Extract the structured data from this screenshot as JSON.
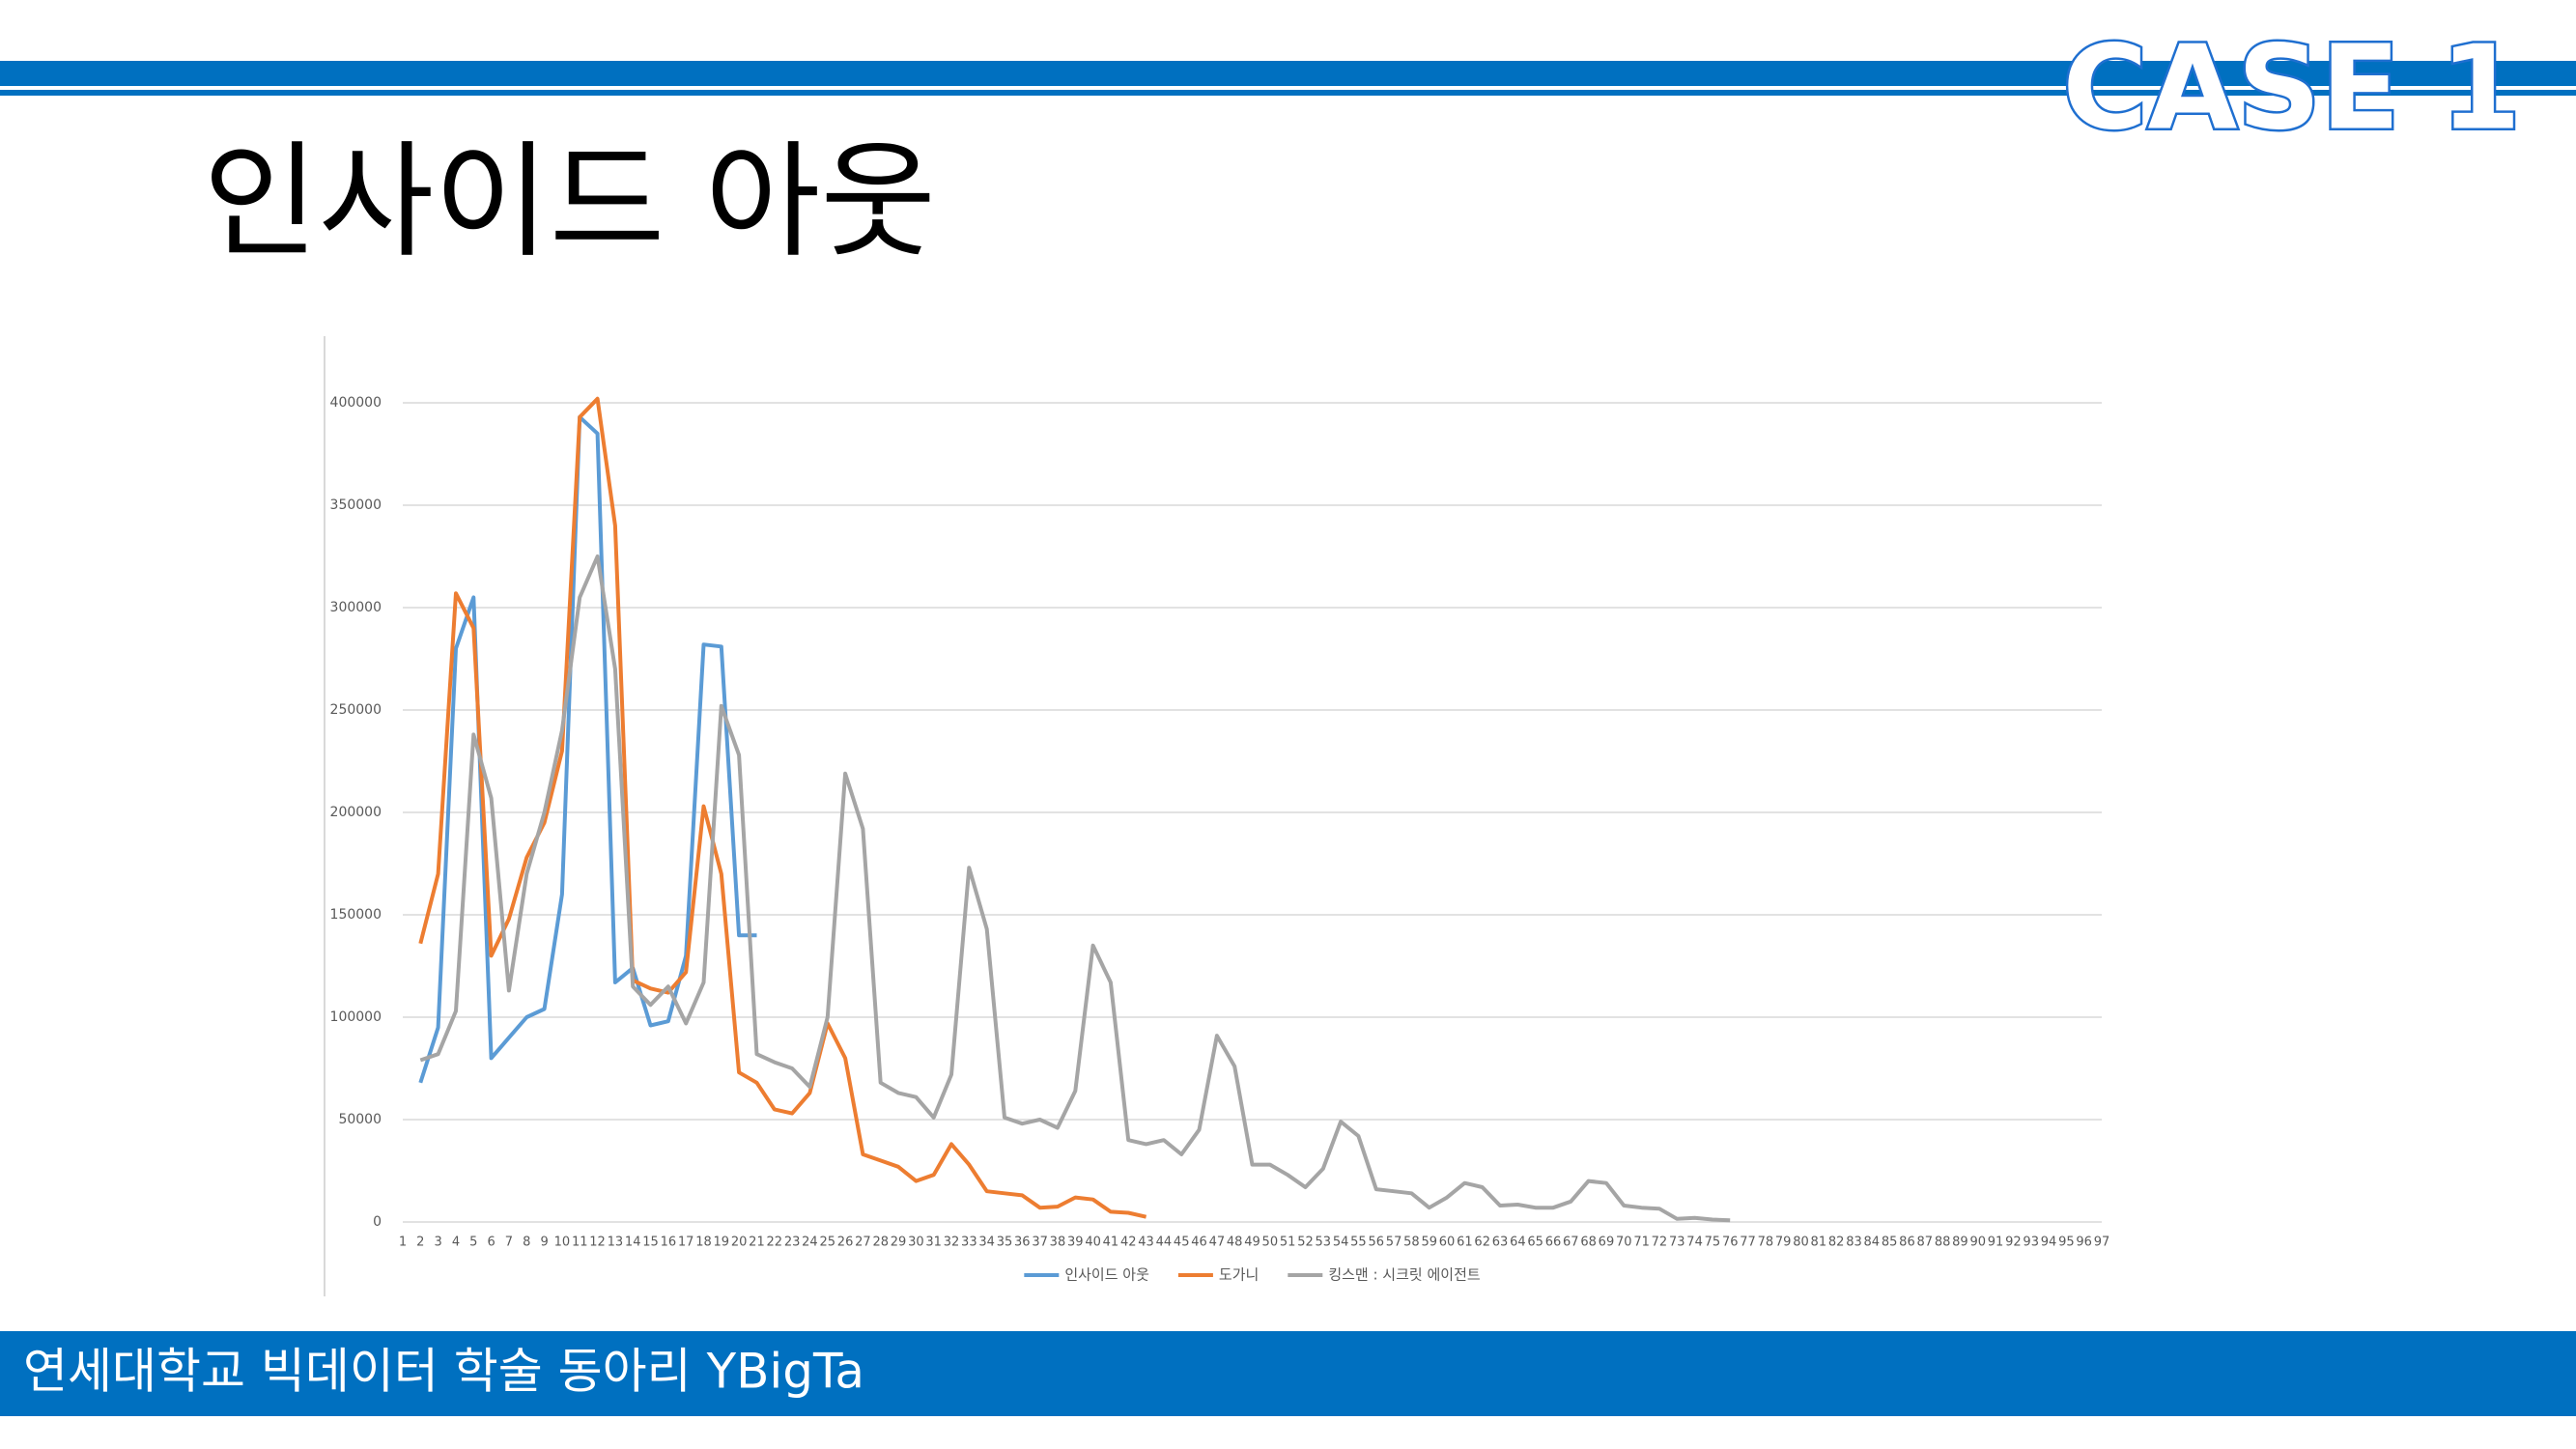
{
  "header": {
    "title": "인사이드 아웃",
    "badge": "CASE 1"
  },
  "footer": {
    "text": "연세대학교 빅데이터 학술 동아리 YBigTa"
  },
  "chart_data": {
    "type": "line",
    "categories": [
      "1",
      "2",
      "3",
      "4",
      "5",
      "6",
      "7",
      "8",
      "9",
      "10",
      "11",
      "12",
      "13",
      "14",
      "15",
      "16",
      "17",
      "18",
      "19",
      "20",
      "21",
      "22",
      "23",
      "24",
      "25",
      "26",
      "27",
      "28",
      "29",
      "30",
      "31",
      "32",
      "33",
      "34",
      "35",
      "36",
      "37",
      "38",
      "39",
      "40",
      "41",
      "42",
      "43",
      "44",
      "45",
      "46",
      "47",
      "48",
      "49",
      "50",
      "51",
      "52",
      "53",
      "54",
      "55",
      "56",
      "57",
      "58",
      "59",
      "60",
      "61",
      "62",
      "63",
      "64",
      "65",
      "66",
      "67",
      "68",
      "69",
      "70",
      "71",
      "72",
      "73",
      "74",
      "75",
      "76",
      "77",
      "78",
      "79",
      "80",
      "81",
      "82",
      "83",
      "84",
      "85",
      "86",
      "87",
      "88",
      "89",
      "90",
      "91",
      "92",
      "93",
      "94",
      "95",
      "96",
      "97"
    ],
    "series": [
      {
        "name": "인사이드 아웃",
        "color": "#5b9bd5",
        "values": [
          null,
          68000,
          95000,
          280000,
          305000,
          80000,
          90000,
          100000,
          104000,
          160000,
          393000,
          385000,
          117000,
          124000,
          96000,
          98000,
          130000,
          282000,
          281000,
          140000,
          140000,
          null,
          null,
          null,
          null,
          null,
          null,
          null,
          null,
          null,
          null,
          null,
          null,
          null,
          null,
          null,
          null,
          null,
          null,
          null,
          null,
          null,
          null,
          null,
          null,
          null,
          null,
          null,
          null,
          null,
          null,
          null,
          null,
          null,
          null,
          null,
          null,
          null,
          null,
          null,
          null,
          null,
          null,
          null,
          null,
          null,
          null,
          null,
          null,
          null,
          null,
          null,
          null,
          null,
          null,
          null,
          null,
          null,
          null,
          null,
          null,
          null,
          null,
          null,
          null,
          null,
          null,
          null,
          null,
          null,
          null,
          null,
          null,
          null,
          null,
          null,
          null
        ]
      },
      {
        "name": "도가니",
        "color": "#ed7d31",
        "values": [
          null,
          136000,
          170000,
          307000,
          290000,
          130000,
          148000,
          178000,
          195000,
          230000,
          393000,
          402000,
          340000,
          118000,
          114000,
          112000,
          122000,
          203000,
          170000,
          73000,
          68000,
          55000,
          53000,
          63000,
          97000,
          80000,
          33000,
          30000,
          27000,
          20000,
          23000,
          38000,
          28000,
          15000,
          14000,
          13000,
          7000,
          7500,
          12000,
          11000,
          5000,
          4500,
          2500,
          null,
          null,
          null,
          null,
          null,
          null,
          null,
          null,
          null,
          null,
          null,
          null,
          null,
          null,
          null,
          null,
          null,
          null,
          null,
          null,
          null,
          null,
          null,
          null,
          null,
          null,
          null,
          null,
          null,
          null,
          null,
          null,
          null,
          null,
          null,
          null,
          null,
          null,
          null,
          null,
          null,
          null,
          null,
          null,
          null,
          null,
          null,
          null,
          null,
          null,
          null,
          null,
          null,
          null
        ]
      },
      {
        "name": "킹스맨 : 시크릿 에이전트",
        "color": "#a5a5a5",
        "values": [
          null,
          79000,
          82000,
          103000,
          238000,
          207000,
          113000,
          170000,
          200000,
          240000,
          305000,
          325000,
          270000,
          115000,
          106000,
          115000,
          97000,
          117000,
          252000,
          228000,
          82000,
          78000,
          75000,
          66000,
          100000,
          219000,
          192000,
          68000,
          63000,
          61000,
          51000,
          72000,
          173000,
          143000,
          51000,
          48000,
          50000,
          46000,
          64000,
          135000,
          117000,
          40000,
          38000,
          40000,
          33000,
          45000,
          91000,
          76000,
          28000,
          28000,
          23000,
          17000,
          26000,
          49000,
          42000,
          16000,
          15000,
          14000,
          7000,
          12000,
          19000,
          17000,
          8000,
          8500,
          7000,
          7000,
          10000,
          20000,
          19000,
          8000,
          7000,
          6500,
          1500,
          2000,
          1200,
          800,
          null,
          null,
          null,
          null,
          null,
          null,
          null,
          null,
          null,
          null,
          null,
          null,
          null,
          null,
          null,
          null,
          null,
          null,
          null,
          null,
          null
        ]
      }
    ],
    "ylim": [
      0,
      400000
    ],
    "yticks": [
      0,
      50000,
      100000,
      150000,
      200000,
      250000,
      300000,
      350000,
      400000
    ],
    "grid": true,
    "legend": "bottom"
  }
}
